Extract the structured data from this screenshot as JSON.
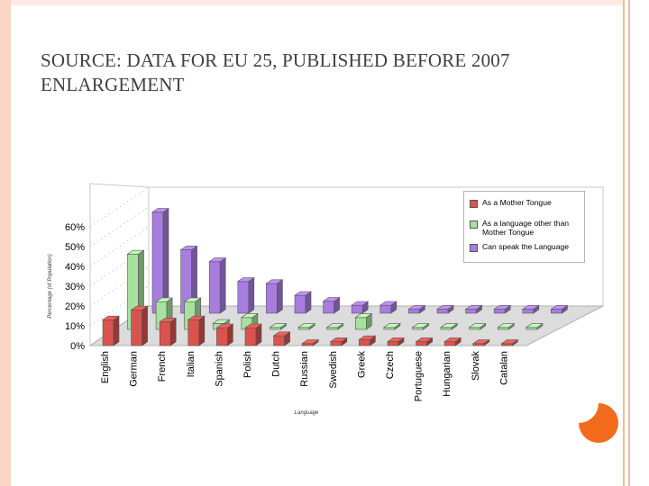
{
  "slide": {
    "title": "SOURCE: DATA FOR EU 25, PUBLISHED BEFORE 2007 ENLARGEMENT",
    "accent_color": "#f26b1d",
    "frame_color": "#fbd6c6"
  },
  "chart_data": {
    "type": "bar",
    "variant": "3d-clustered-column",
    "title": "",
    "xlabel": "Language",
    "ylabel": "Percentage (of Population)",
    "ylim": [
      0,
      60
    ],
    "yticks": [
      "0%",
      "10%",
      "20%",
      "30%",
      "40%",
      "50%",
      "60%"
    ],
    "grid": false,
    "legend_position": "top-right",
    "categories": [
      "English",
      "German",
      "French",
      "Italian",
      "Spanish",
      "Polish",
      "Dutch",
      "Russian",
      "Swedish",
      "Greek",
      "Czech",
      "Portuguese",
      "Hungarian",
      "Slovak",
      "Catalan"
    ],
    "series": [
      {
        "name": "As a Mother Tongue",
        "color": "#d9534f",
        "values": [
          13,
          18,
          12,
          13,
          9,
          9,
          5,
          1,
          2,
          3,
          2,
          2,
          2,
          1,
          1
        ]
      },
      {
        "name": "As a language other than Mother Tongue",
        "color": "#a8e0a0",
        "values": [
          38,
          14,
          14,
          3,
          6,
          1,
          1,
          1,
          6,
          1,
          1,
          1,
          1,
          1,
          1
        ]
      },
      {
        "name": "Can speak the Language",
        "color": "#a77de0",
        "values": [
          51,
          32,
          26,
          16,
          15,
          9,
          6,
          4,
          4,
          2,
          2,
          2,
          2,
          2,
          2
        ]
      }
    ]
  }
}
